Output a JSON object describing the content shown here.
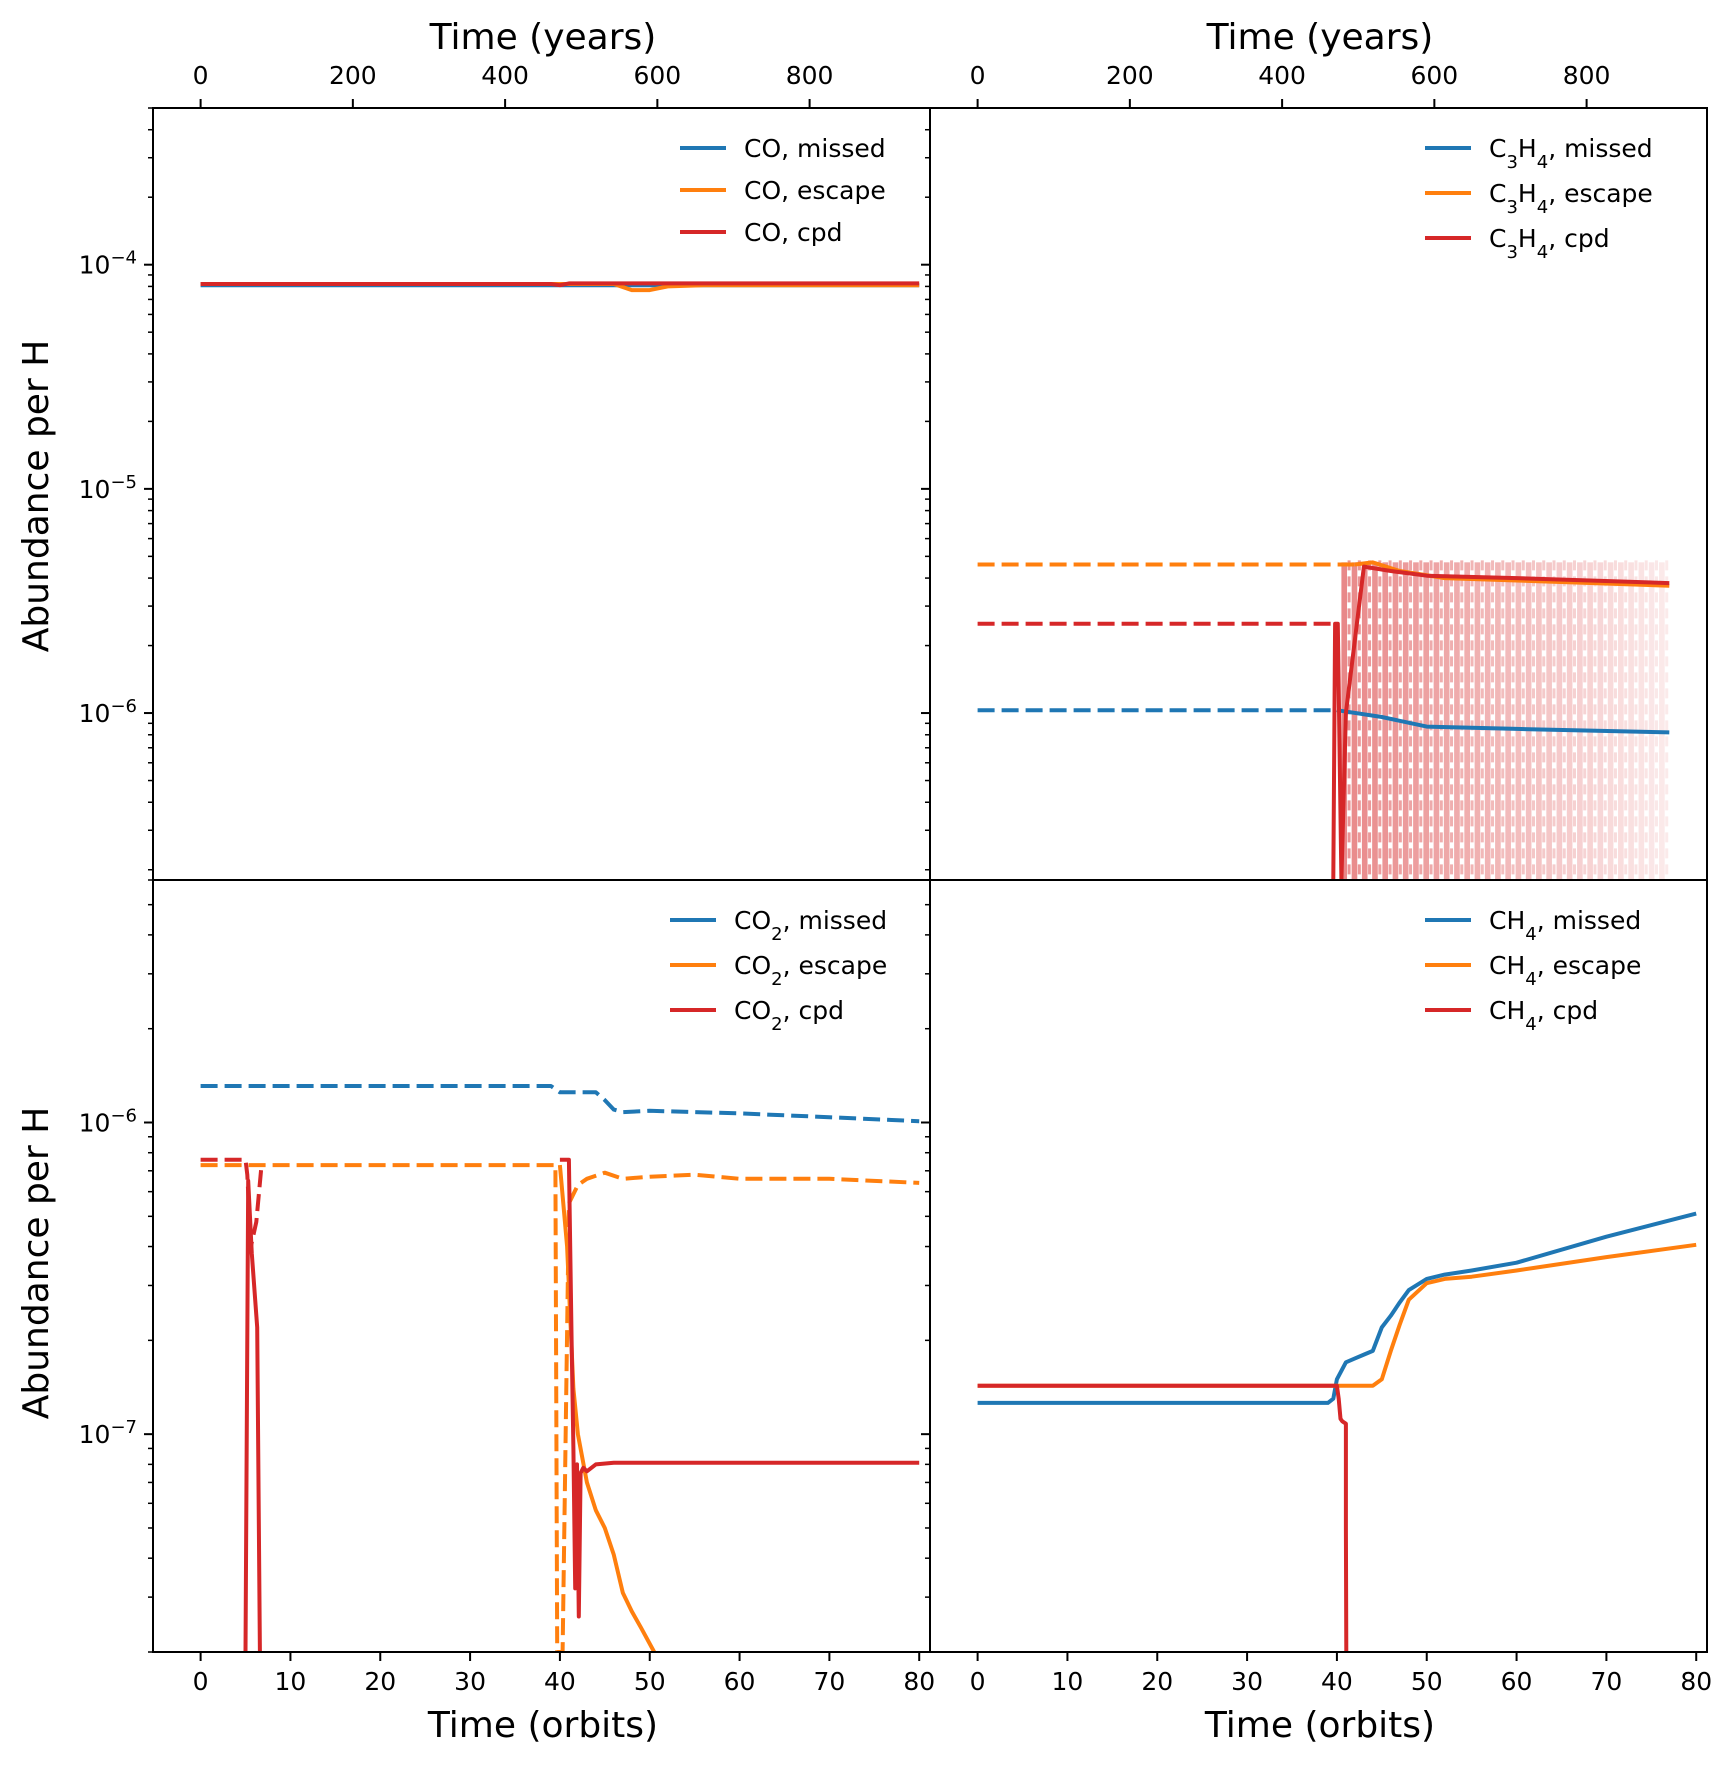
{
  "figure": {
    "top_xlabel": "Time (years)",
    "bottom_xlabel": "Time (orbits)",
    "ylabel": "Abundance per H",
    "orbit_ticks": [
      0,
      10,
      20,
      30,
      40,
      50,
      60,
      70,
      80
    ],
    "year_ticks": [
      0,
      200,
      400,
      600,
      800
    ],
    "orbit_xlim": [
      -5.3,
      81.2
    ],
    "orbits_to_years_factor": 11.8,
    "colors": {
      "missed": "#1f77b4",
      "escape": "#ff7f0e",
      "cpd": "#d62728"
    }
  },
  "chart_data": [
    {
      "panel": "top-left",
      "type": "line",
      "yscale": "log",
      "ylim": [
        1.8e-07,
        0.0005
      ],
      "yticks": [
        {
          "value": 1e-06,
          "label": "10⁻⁶"
        },
        {
          "value": 1e-05,
          "label": "10⁻⁵"
        },
        {
          "value": 0.0001,
          "label": "10⁻⁴"
        }
      ],
      "show_left_ticklabels": true,
      "legend": [
        "CO, missed",
        "CO, escape",
        "CO, cpd"
      ],
      "series": [
        {
          "name": "CO, missed",
          "role": "missed",
          "style": "solid",
          "x": [
            0,
            80
          ],
          "y": [
            8.1e-05,
            8.1e-05
          ]
        },
        {
          "name": "CO, escape",
          "role": "escape",
          "style": "solid",
          "x": [
            0,
            46,
            48,
            50,
            52,
            56,
            80
          ],
          "y": [
            8.2e-05,
            8.2e-05,
            7.7e-05,
            7.7e-05,
            8e-05,
            8.1e-05,
            8.1e-05
          ]
        },
        {
          "name": "CO, cpd",
          "role": "cpd",
          "style": "solid",
          "x": [
            0,
            39,
            40,
            41,
            80
          ],
          "y": [
            8.2e-05,
            8.2e-05,
            8.1e-05,
            8.25e-05,
            8.25e-05
          ]
        }
      ]
    },
    {
      "panel": "top-right",
      "type": "line",
      "yscale": "log",
      "ylim": [
        1.8e-07,
        0.0005
      ],
      "yticks": [
        {
          "value": 1e-06,
          "label": ""
        },
        {
          "value": 1e-05,
          "label": ""
        },
        {
          "value": 0.0001,
          "label": ""
        }
      ],
      "show_left_ticklabels": false,
      "legend": [
        "C₃H₄, missed",
        "C₃H₄, escape",
        "C₃H₄, cpd"
      ],
      "oscillation_region": {
        "role": "cpd",
        "x_start": 40.5,
        "x_end": 77,
        "y_low": 1.8e-07,
        "y_high": 4.8e-06,
        "n_cycles": 32
      },
      "series": [
        {
          "name": "C₃H₄, missed (initial)",
          "role": "missed",
          "style": "dashed",
          "x": [
            0,
            40
          ],
          "y": [
            1.03e-06,
            1.03e-06
          ]
        },
        {
          "name": "C₃H₄, missed",
          "role": "missed",
          "style": "solid",
          "x": [
            40,
            45,
            50,
            60,
            77
          ],
          "y": [
            1.03e-06,
            9.6e-07,
            8.7e-07,
            8.5e-07,
            8.2e-07
          ]
        },
        {
          "name": "C₃H₄, escape (initial)",
          "role": "escape",
          "style": "dashed",
          "x": [
            0,
            42
          ],
          "y": [
            4.6e-06,
            4.6e-06
          ]
        },
        {
          "name": "C₃H₄, escape",
          "role": "escape",
          "style": "solid",
          "x": [
            42,
            44,
            47,
            52,
            60,
            77
          ],
          "y": [
            4.6e-06,
            4.7e-06,
            4.3e-06,
            4e-06,
            3.9e-06,
            3.7e-06
          ]
        },
        {
          "name": "C₃H₄, cpd (initial)",
          "role": "cpd",
          "style": "dashed",
          "x": [
            0,
            39.6
          ],
          "y": [
            2.5e-06,
            2.5e-06
          ]
        },
        {
          "name": "C₃H₄, cpd",
          "role": "cpd",
          "style": "solid",
          "x": [
            39.6,
            39.8,
            40.1,
            40.5,
            41,
            43,
            46,
            50,
            60,
            77
          ],
          "y": [
            1.8e-07,
            2.5e-06,
            2.5e-06,
            1.8e-07,
            1e-06,
            4.5e-06,
            4.3e-06,
            4.1e-06,
            4e-06,
            3.8e-06
          ]
        }
      ]
    },
    {
      "panel": "bottom-left",
      "type": "line",
      "yscale": "log",
      "ylim": [
        2e-08,
        6e-06
      ],
      "yticks": [
        {
          "value": 1e-07,
          "label": "10⁻⁷"
        },
        {
          "value": 1e-06,
          "label": "10⁻⁶"
        }
      ],
      "show_left_ticklabels": true,
      "legend": [
        "CO₂, missed",
        "CO₂, escape",
        "CO₂, cpd"
      ],
      "series": [
        {
          "name": "CO₂, missed (dashed)",
          "role": "missed",
          "style": "dashed",
          "x": [
            0,
            39,
            40,
            44,
            45,
            46,
            47,
            50,
            60,
            70,
            80
          ],
          "y": [
            1.31e-06,
            1.31e-06,
            1.25e-06,
            1.25e-06,
            1.18e-06,
            1.1e-06,
            1.08e-06,
            1.09e-06,
            1.07e-06,
            1.04e-06,
            1.01e-06
          ]
        },
        {
          "name": "CO₂, escape (dashed)",
          "role": "escape",
          "style": "dashed",
          "x": [
            0,
            39.5,
            39.7,
            40.3,
            41,
            42,
            43,
            45,
            47,
            50,
            55,
            60,
            70,
            80
          ],
          "y": [
            7.3e-07,
            7.3e-07,
            2e-08,
            2e-08,
            5.5e-07,
            6.3e-07,
            6.6e-07,
            6.9e-07,
            6.6e-07,
            6.7e-07,
            6.8e-07,
            6.6e-07,
            6.6e-07,
            6.4e-07
          ]
        },
        {
          "name": "CO₂, escape",
          "role": "escape",
          "style": "solid",
          "x": [
            40,
            40.8,
            41.5,
            42,
            43,
            44,
            45,
            46,
            47,
            48,
            49,
            50.5
          ],
          "y": [
            7.3e-07,
            4e-07,
            1.4e-07,
            1e-07,
            7e-08,
            5.7e-08,
            5e-08,
            4.1e-08,
            3.1e-08,
            2.7e-08,
            2.4e-08,
            2e-08
          ]
        },
        {
          "name": "CO₂, cpd (dashed)",
          "role": "cpd",
          "style": "dashed",
          "x": [
            0,
            5,
            5.2,
            5.6,
            6.2,
            6.8
          ],
          "y": [
            7.6e-07,
            7.6e-07,
            6.8e-07,
            4e-07,
            4.8e-07,
            7.4e-07
          ]
        },
        {
          "name": "CO₂, cpd",
          "role": "cpd",
          "style": "solid",
          "x": [
            5,
            5.3,
            5.7,
            6.3,
            6.6,
            6.6
          ],
          "y": [
            2e-08,
            6.5e-07,
            3.8e-07,
            2.2e-07,
            2e-08,
            2e-08
          ]
        },
        {
          "name": "CO₂, cpd (drop)",
          "role": "cpd",
          "style": "solid",
          "x": [
            40,
            40.1,
            41,
            41.3,
            41.5,
            41.7,
            41.9,
            42.1,
            42.3,
            42.6,
            43,
            44,
            46,
            80
          ],
          "y": [
            7.6e-07,
            7.6e-07,
            7.6e-07,
            2e-07,
            9e-08,
            3.2e-08,
            8e-08,
            2.6e-08,
            7.5e-08,
            7.8e-08,
            7.6e-08,
            8e-08,
            8.1e-08,
            8.1e-08
          ]
        }
      ]
    },
    {
      "panel": "bottom-right",
      "type": "line",
      "yscale": "log",
      "ylim": [
        2e-08,
        6e-06
      ],
      "yticks": [
        {
          "value": 1e-07,
          "label": ""
        },
        {
          "value": 1e-06,
          "label": ""
        }
      ],
      "show_left_ticklabels": false,
      "legend": [
        "CH₄, missed",
        "CH₄, escape",
        "CH₄, cpd"
      ],
      "series": [
        {
          "name": "CH₄, missed",
          "role": "missed",
          "style": "solid",
          "x": [
            0,
            39,
            39.6,
            40,
            41,
            42,
            43,
            44,
            45,
            46,
            47,
            48,
            50,
            52,
            55,
            60,
            70,
            80
          ],
          "y": [
            1.26e-07,
            1.26e-07,
            1.3e-07,
            1.5e-07,
            1.7e-07,
            1.75e-07,
            1.8e-07,
            1.85e-07,
            2.2e-07,
            2.4e-07,
            2.65e-07,
            2.9e-07,
            3.15e-07,
            3.25e-07,
            3.35e-07,
            3.55e-07,
            4.3e-07,
            5.1e-07
          ]
        },
        {
          "name": "CH₄, escape",
          "role": "escape",
          "style": "solid",
          "x": [
            0,
            44,
            45,
            46,
            47,
            48,
            50,
            52,
            55,
            60,
            70,
            80
          ],
          "y": [
            1.43e-07,
            1.43e-07,
            1.5e-07,
            1.85e-07,
            2.25e-07,
            2.7e-07,
            3.05e-07,
            3.15e-07,
            3.2e-07,
            3.35e-07,
            3.7e-07,
            4.05e-07
          ]
        },
        {
          "name": "CH₄, cpd",
          "role": "cpd",
          "style": "solid",
          "x": [
            0,
            40,
            40.2,
            40.4,
            40.6,
            41,
            41,
            41.05
          ],
          "y": [
            1.43e-07,
            1.43e-07,
            1.3e-07,
            1.12e-07,
            1.1e-07,
            1.08e-07,
            5e-08,
            2e-08
          ]
        }
      ]
    }
  ]
}
